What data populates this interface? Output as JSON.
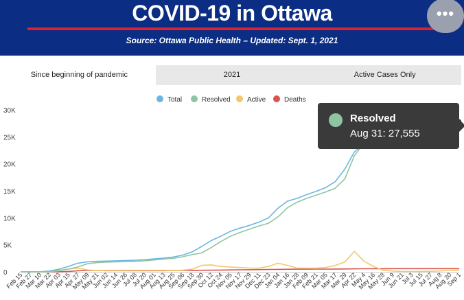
{
  "header": {
    "title": "COVID-19 in Ottawa",
    "subtitle": "Source:  Ottawa Public Health – Updated:  Sept. 1, 2021",
    "more_icon": "ellipsis-icon",
    "more_label": "•••",
    "bg_color": "#0b2d83",
    "rule_color": "#e0202a"
  },
  "tabs": [
    {
      "label": "Since beginning of pandemic",
      "active": true
    },
    {
      "label": "2021",
      "active": false
    },
    {
      "label": "Active Cases Only",
      "active": false
    }
  ],
  "tooltip": {
    "series": "Resolved",
    "text": "Aug 31: 27,555"
  },
  "chart_data": {
    "type": "line",
    "legend_position": "top",
    "grid": false,
    "ylim": [
      0,
      30000
    ],
    "yticks": [
      0,
      5000,
      10000,
      15000,
      20000,
      25000,
      30000
    ],
    "ytick_labels": [
      "0",
      "5K",
      "10K",
      "15K",
      "20K",
      "25K",
      "30K"
    ],
    "x_labels": [
      "Feb 15",
      "Feb 27",
      "Mar 10",
      "Mar 22",
      "Apr 03",
      "Apr 15",
      "Apr 27",
      "May 09",
      "May 21",
      "Jun 02",
      "Jun 14",
      "Jun 26",
      "Jul 08",
      "Jul 20",
      "Aug 01",
      "Aug 13",
      "Aug 25",
      "Sep 06",
      "Sep 18",
      "Sep 30",
      "Oct 12",
      "Oct 24",
      "Nov 05",
      "Nov 17",
      "Nov 29",
      "Dec 11",
      "Dec 23",
      "Jan 04",
      "Jan 16",
      "Jan 28",
      "Feb 09",
      "Feb 21",
      "Mar 05",
      "Mar 17",
      "Mar 29",
      "Apr 22",
      "May 4",
      "May 16",
      "May 28",
      "Jun 9",
      "Jun 21",
      "Jul 3",
      "Jul 15",
      "Jul 27",
      "Aug 8",
      "Aug 20",
      "Sep 1"
    ],
    "series": [
      {
        "name": "Total",
        "color": "#6cb6e0",
        "values": [
          0,
          0,
          10,
          150,
          500,
          1000,
          1600,
          1850,
          1950,
          2000,
          2050,
          2100,
          2150,
          2250,
          2400,
          2550,
          2750,
          3100,
          3700,
          4700,
          5800,
          6600,
          7500,
          8100,
          8600,
          9200,
          10000,
          11800,
          13100,
          13600,
          14300,
          14900,
          15600,
          16700,
          19000,
          22200,
          23700,
          26200,
          27100,
          27400,
          27550,
          27580,
          27620,
          27680,
          27760,
          27900,
          28000
        ]
      },
      {
        "name": "Resolved",
        "color": "#8fc5a2",
        "values": [
          0,
          0,
          0,
          0,
          200,
          500,
          900,
          1500,
          1700,
          1800,
          1850,
          1900,
          1950,
          2050,
          2200,
          2350,
          2500,
          2800,
          3200,
          3500,
          4500,
          5600,
          6600,
          7300,
          7900,
          8500,
          9000,
          10200,
          11900,
          12900,
          13600,
          14200,
          14800,
          15500,
          17200,
          21500,
          23800,
          25500,
          26800,
          27100,
          27300,
          27380,
          27420,
          27470,
          27500,
          27530,
          27555
        ]
      },
      {
        "name": "Active",
        "color": "#f2c86a",
        "values": [
          0,
          0,
          10,
          150,
          300,
          500,
          700,
          350,
          250,
          200,
          200,
          200,
          200,
          200,
          200,
          200,
          250,
          300,
          500,
          1200,
          1300,
          1000,
          900,
          800,
          700,
          700,
          1000,
          1600,
          1200,
          700,
          700,
          700,
          800,
          1200,
          1800,
          3800,
          2000,
          1000,
          300,
          150,
          80,
          60,
          80,
          100,
          160,
          250,
          300
        ]
      },
      {
        "name": "Deaths",
        "color": "#d9534f",
        "values": [
          0,
          0,
          0,
          0,
          10,
          80,
          200,
          250,
          260,
          260,
          260,
          262,
          262,
          264,
          266,
          268,
          270,
          272,
          275,
          290,
          300,
          330,
          360,
          380,
          400,
          420,
          440,
          460,
          480,
          490,
          500,
          505,
          510,
          520,
          540,
          560,
          575,
          585,
          590,
          592,
          593,
          594,
          595,
          596,
          597,
          598,
          600
        ]
      }
    ]
  }
}
